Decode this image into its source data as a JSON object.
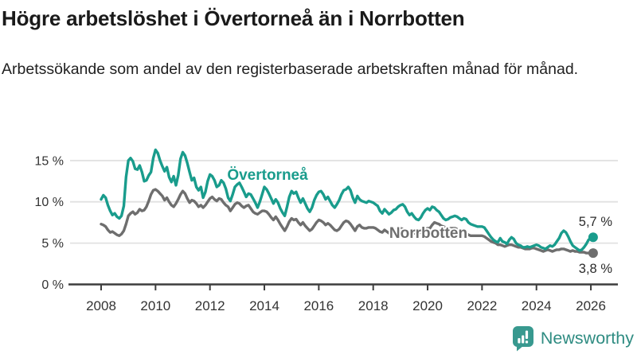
{
  "header": {
    "title": "Högre arbetslöshet i Övertorneå än i Norrbotten",
    "subtitle": "Arbetssökande som andel av den registerbaserade arbetskraften månad för månad."
  },
  "footer": {
    "brand": "Newsworthy"
  },
  "colors": {
    "teal": "#199c8c",
    "gray": "#6e6e6e",
    "axis": "#3d3d3d",
    "grid": "#e1e1e1",
    "tick_text": "#333333",
    "logo": "#2f8c82"
  },
  "chart_data": {
    "type": "line",
    "x_unit": "monthly",
    "x_start": "2008-01",
    "x_end": "2026-02",
    "x_ticks": [
      2008,
      2010,
      2012,
      2014,
      2016,
      2018,
      2020,
      2022,
      2024,
      2026
    ],
    "x_tick_labels": [
      "2008",
      "2010",
      "2012",
      "2014",
      "2016",
      "2018",
      "2020",
      "2022",
      "2024",
      "2026"
    ],
    "y_ticks": [
      0,
      5,
      10,
      15
    ],
    "y_tick_labels": [
      "0 %",
      "5 %",
      "10 %",
      "15 %"
    ],
    "ylim": [
      0,
      17
    ],
    "grid": true,
    "legend_position": "inline-labels",
    "series": [
      {
        "name": "Övertorneå",
        "color": "#199c8c",
        "end_label": "5,7 %",
        "values": [
          10.3,
          10.8,
          10.5,
          9.6,
          8.9,
          8.4,
          8.6,
          8.2,
          8.0,
          8.3,
          9.5,
          13.0,
          15.0,
          15.3,
          14.9,
          14.0,
          13.9,
          14.4,
          13.6,
          12.5,
          12.6,
          13.2,
          13.6,
          15.3,
          16.3,
          15.9,
          15.0,
          14.3,
          13.7,
          14.2,
          13.0,
          12.4,
          13.1,
          12.0,
          13.2,
          15.2,
          16.0,
          15.6,
          14.7,
          13.6,
          12.6,
          12.9,
          11.8,
          11.4,
          11.8,
          10.5,
          11.2,
          12.5,
          13.3,
          13.1,
          12.6,
          11.8,
          12.0,
          12.6,
          12.3,
          11.6,
          10.5,
          10.1,
          10.9,
          11.8,
          12.1,
          12.3,
          11.8,
          11.2,
          10.6,
          11.0,
          10.9,
          10.4,
          9.9,
          9.3,
          10.0,
          10.9,
          11.8,
          11.5,
          11.0,
          10.4,
          9.8,
          10.3,
          9.9,
          9.2,
          8.7,
          8.3,
          9.4,
          10.6,
          11.3,
          11.0,
          11.2,
          10.5,
          9.9,
          10.4,
          9.8,
          9.2,
          8.8,
          9.3,
          10.2,
          10.8,
          11.2,
          11.3,
          10.9,
          10.3,
          10.6,
          10.1,
          9.6,
          9.3,
          9.7,
          10.2,
          10.9,
          11.4,
          11.5,
          11.8,
          11.4,
          10.5,
          9.9,
          10.7,
          10.3,
          10.1,
          10.0,
          9.9,
          10.1,
          10.0,
          9.9,
          9.7,
          9.5,
          8.9,
          8.6,
          9.1,
          8.8,
          8.5,
          8.7,
          9.0,
          9.1,
          9.4,
          9.6,
          9.7,
          9.4,
          8.8,
          8.4,
          8.6,
          8.2,
          7.9,
          7.8,
          8.1,
          8.6,
          9.0,
          9.2,
          9.0,
          9.4,
          9.3,
          9.0,
          8.8,
          8.4,
          8.0,
          7.8,
          7.9,
          8.1,
          8.2,
          8.3,
          8.2,
          8.0,
          7.8,
          8.0,
          7.9,
          7.5,
          7.3,
          7.2,
          7.1,
          7.0,
          7.0,
          7.0,
          6.9,
          6.5,
          6.1,
          5.7,
          5.4,
          5.2,
          5.1,
          5.6,
          5.2,
          5.1,
          4.9,
          5.4,
          5.7,
          5.5,
          5.0,
          4.8,
          4.7,
          4.5,
          4.5,
          4.6,
          4.5,
          4.6,
          4.7,
          4.8,
          4.7,
          4.5,
          4.4,
          4.3,
          4.5,
          4.7,
          4.6,
          4.8,
          5.2,
          5.6,
          6.2,
          6.5,
          6.3,
          5.8,
          5.2,
          4.7,
          4.5,
          4.3,
          4.1,
          4.2,
          4.5,
          4.9,
          5.4,
          5.6,
          5.7
        ]
      },
      {
        "name": "Norrbotten",
        "color": "#6e6e6e",
        "end_label": "3,8 %",
        "values": [
          7.3,
          7.2,
          7.0,
          6.6,
          6.3,
          6.4,
          6.2,
          6.0,
          5.9,
          6.1,
          6.5,
          7.3,
          8.3,
          8.6,
          8.8,
          8.5,
          8.7,
          9.1,
          8.9,
          9.0,
          9.4,
          10.1,
          10.9,
          11.4,
          11.5,
          11.3,
          11.0,
          10.7,
          10.2,
          10.5,
          10.0,
          9.6,
          9.4,
          9.8,
          10.3,
          10.9,
          11.3,
          11.0,
          10.4,
          9.9,
          10.2,
          10.1,
          9.8,
          9.4,
          9.6,
          9.3,
          9.6,
          10.0,
          10.4,
          10.6,
          10.3,
          10.1,
          10.4,
          10.3,
          9.9,
          9.6,
          9.4,
          8.9,
          9.3,
          9.7,
          9.9,
          9.8,
          9.5,
          9.3,
          9.5,
          9.6,
          9.2,
          8.8,
          8.6,
          8.5,
          8.7,
          8.9,
          8.9,
          8.8,
          8.5,
          8.1,
          7.8,
          8.2,
          7.8,
          7.3,
          6.9,
          6.5,
          7.0,
          7.6,
          8.0,
          7.8,
          7.9,
          7.5,
          7.2,
          7.5,
          7.1,
          6.8,
          6.5,
          6.7,
          7.1,
          7.5,
          7.8,
          7.7,
          7.5,
          7.2,
          7.4,
          7.2,
          6.9,
          6.6,
          6.5,
          6.7,
          7.1,
          7.5,
          7.7,
          7.6,
          7.3,
          6.9,
          6.5,
          7.0,
          7.2,
          6.9,
          6.8,
          6.8,
          6.9,
          6.9,
          6.9,
          6.8,
          6.6,
          6.4,
          6.3,
          6.6,
          6.4,
          6.2,
          6.3,
          6.4,
          6.6,
          6.7,
          6.8,
          6.7,
          6.5,
          6.3,
          6.2,
          6.4,
          6.2,
          6.1,
          6.2,
          6.3,
          6.5,
          6.7,
          6.8,
          6.8,
          7.2,
          7.5,
          7.4,
          7.3,
          7.1,
          7.0,
          6.9,
          6.8,
          6.8,
          6.8,
          6.8,
          6.7,
          6.6,
          6.4,
          6.3,
          6.2,
          6.0,
          5.9,
          5.9,
          5.9,
          5.9,
          5.9,
          5.9,
          5.8,
          5.6,
          5.4,
          5.2,
          5.1,
          5.0,
          4.8,
          4.8,
          4.7,
          4.6,
          4.7,
          4.8,
          4.8,
          4.7,
          4.6,
          4.5,
          4.5,
          4.4,
          4.3,
          4.3,
          4.3,
          4.4,
          4.4,
          4.3,
          4.2,
          4.1,
          4.0,
          4.1,
          4.2,
          4.1,
          4.0,
          4.1,
          4.2,
          4.2,
          4.3,
          4.3,
          4.2,
          4.1,
          4.0,
          4.1,
          4.0,
          4.0,
          3.9,
          3.9,
          3.9,
          3.8,
          3.8,
          3.8,
          3.8
        ]
      }
    ]
  }
}
